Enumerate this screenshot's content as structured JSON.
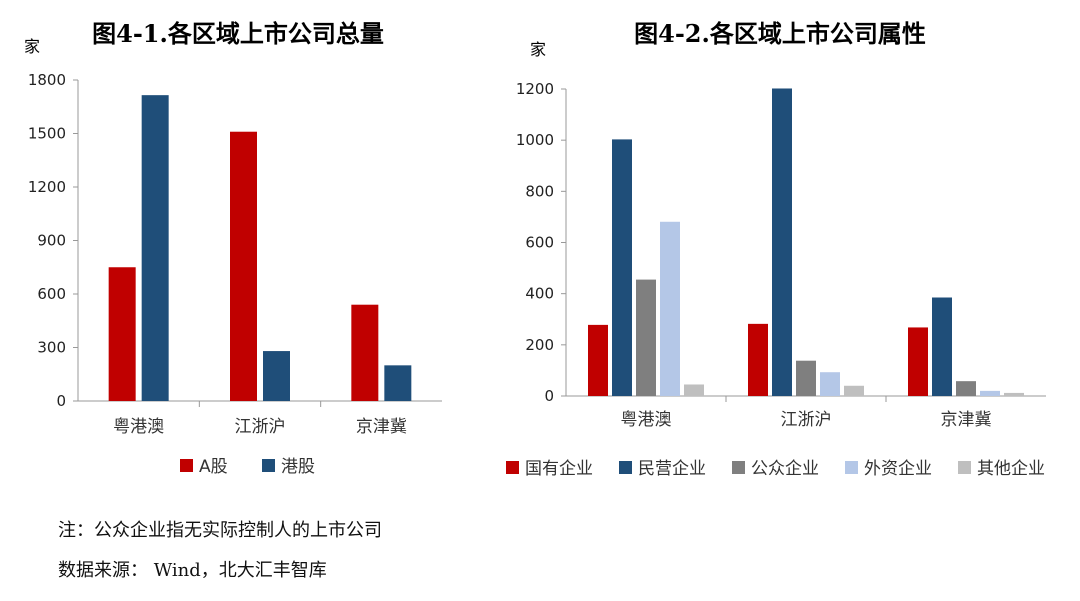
{
  "notes": {
    "note": "注：公众企业指无实际控制人的上市公司",
    "source": "数据来源： Wind，北大汇丰智库"
  },
  "chart_data": [
    {
      "type": "bar",
      "title": "图4-1.各区域上市公司总量",
      "ylabel": "家",
      "ylim": [
        0,
        1800
      ],
      "yticks": [
        0,
        300,
        600,
        900,
        1200,
        1500,
        1800
      ],
      "categories": [
        "粤港澳",
        "江浙沪",
        "京津冀"
      ],
      "series": [
        {
          "name": "A股",
          "color": "#C00000",
          "values": [
            750,
            1510,
            540
          ]
        },
        {
          "name": "港股",
          "color": "#1F4E79",
          "values": [
            1715,
            280,
            200
          ]
        }
      ],
      "legend": "bottom",
      "grid": false
    },
    {
      "type": "bar",
      "title": "图4-2.各区域上市公司属性",
      "ylabel": "家",
      "ylim": [
        0,
        1200
      ],
      "yticks": [
        0,
        200,
        400,
        600,
        800,
        1000,
        1200
      ],
      "categories": [
        "粤港澳",
        "江浙沪",
        "京津冀"
      ],
      "series": [
        {
          "name": "国有企业",
          "color": "#C00000",
          "values": [
            278,
            282,
            268
          ]
        },
        {
          "name": "民营企业",
          "color": "#1F4E79",
          "values": [
            1003,
            1202,
            385
          ]
        },
        {
          "name": "公众企业",
          "color": "#7F7F7F",
          "values": [
            455,
            138,
            58
          ]
        },
        {
          "name": "外资企业",
          "color": "#B4C7E7",
          "values": [
            681,
            93,
            20
          ]
        },
        {
          "name": "其他企业",
          "color": "#BFBFBF",
          "values": [
            45,
            40,
            12
          ]
        }
      ],
      "legend": "bottom",
      "grid": false
    }
  ]
}
